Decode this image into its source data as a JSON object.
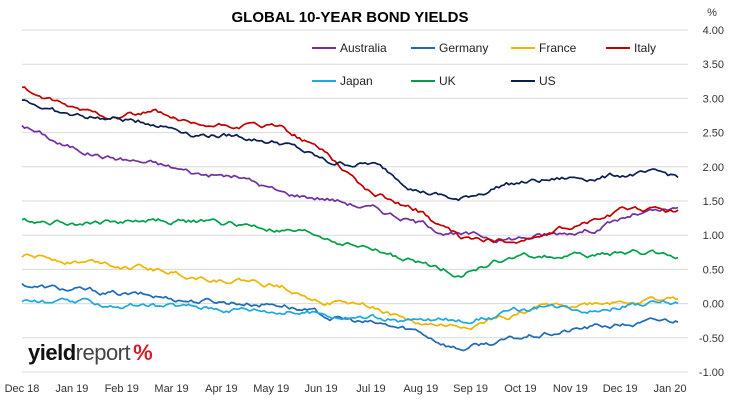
{
  "chart_data": {
    "type": "line",
    "title": "GLOBAL 10-YEAR BOND YIELDS",
    "yunit": "%",
    "ylim": [
      -1.0,
      4.0
    ],
    "yticks": [
      "4.00",
      "3.50",
      "3.00",
      "2.50",
      "2.00",
      "1.50",
      "1.00",
      "0.50",
      "0.00",
      "-0.50",
      "-1.00"
    ],
    "x_labels": [
      "Dec 18",
      "Jan 19",
      "Feb 19",
      "Mar 19",
      "Apr 19",
      "May 19",
      "Jun 19",
      "Jul 19",
      "Aug 19",
      "Sep 19",
      "Oct 19",
      "Nov 19",
      "Dec 19",
      "Jan 20"
    ],
    "grid": "horizontal",
    "legend_position": "top-right",
    "series": [
      {
        "name": "Australia",
        "color": "#7030a0",
        "values": [
          2.62,
          2.3,
          2.15,
          2.05,
          1.9,
          1.85,
          1.6,
          1.55,
          1.4,
          1.2,
          1.0,
          0.95,
          1.0,
          1.1,
          1.3,
          1.35
        ]
      },
      {
        "name": "Germany",
        "color": "#1f6bb5",
        "values": [
          0.28,
          0.2,
          0.15,
          0.1,
          0.05,
          0.02,
          0.0,
          -0.2,
          -0.3,
          -0.4,
          -0.65,
          -0.55,
          -0.45,
          -0.35,
          -0.3,
          -0.25
        ]
      },
      {
        "name": "France",
        "color": "#f0b400",
        "values": [
          0.7,
          0.65,
          0.6,
          0.5,
          0.4,
          0.35,
          0.25,
          0.05,
          -0.05,
          -0.3,
          -0.35,
          -0.2,
          -0.05,
          0.0,
          0.05,
          0.05
        ]
      },
      {
        "name": "Italy",
        "color": "#c00000",
        "values": [
          3.15,
          2.85,
          2.75,
          2.8,
          2.55,
          2.6,
          2.55,
          2.2,
          1.6,
          1.4,
          0.95,
          0.9,
          1.0,
          1.2,
          1.4,
          1.35
        ]
      },
      {
        "name": "Japan",
        "color": "#1ea8e0",
        "values": [
          0.05,
          0.0,
          -0.02,
          -0.05,
          -0.05,
          -0.05,
          -0.1,
          -0.15,
          -0.2,
          -0.25,
          -0.25,
          -0.15,
          -0.05,
          -0.05,
          0.0,
          0.0
        ]
      },
      {
        "name": "UK",
        "color": "#00a04a",
        "values": [
          1.22,
          1.2,
          1.2,
          1.22,
          1.2,
          1.15,
          1.05,
          0.95,
          0.8,
          0.6,
          0.45,
          0.65,
          0.7,
          0.7,
          0.75,
          0.7
        ]
      },
      {
        "name": "US",
        "color": "#0a1f4e",
        "values": [
          3.0,
          2.75,
          2.7,
          2.65,
          2.5,
          2.45,
          2.35,
          2.05,
          2.05,
          1.7,
          1.5,
          1.75,
          1.8,
          1.85,
          1.9,
          1.85
        ]
      }
    ]
  },
  "brand": {
    "part1": "yield",
    "part2": "report",
    "part3": "%"
  }
}
